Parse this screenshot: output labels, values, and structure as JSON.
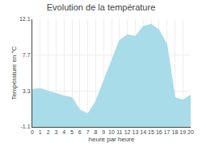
{
  "chart_data": {
    "type": "area",
    "title": "Evolution de la température",
    "xlabel": "heure par heure",
    "ylabel": "Température en °C",
    "x": [
      0,
      1,
      2,
      3,
      4,
      5,
      6,
      7,
      8,
      9,
      10,
      11,
      12,
      13,
      14,
      15,
      16,
      17,
      18,
      19,
      20
    ],
    "values": [
      3.5,
      3.6,
      3.3,
      3.0,
      2.7,
      2.5,
      1.0,
      0.5,
      2.0,
      4.5,
      7.0,
      9.5,
      10.2,
      10.0,
      11.2,
      11.5,
      10.8,
      9.0,
      2.5,
      2.2,
      2.8
    ],
    "color": "#a8dce8",
    "xlim": [
      0,
      20
    ],
    "xticks": [
      0,
      1,
      2,
      3,
      4,
      5,
      6,
      7,
      8,
      9,
      10,
      11,
      12,
      13,
      14,
      15,
      16,
      17,
      18,
      19,
      20
    ],
    "ylim": [
      -1.1,
      12.1
    ],
    "yticks": [
      -1.1,
      3.3,
      7.7,
      12.1
    ],
    "grid": true
  }
}
